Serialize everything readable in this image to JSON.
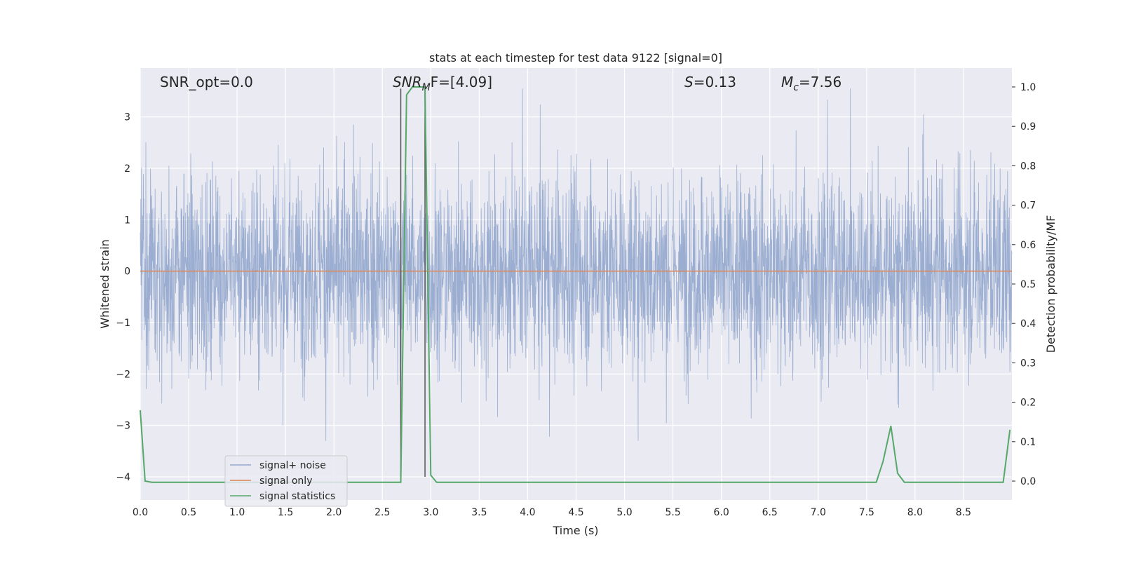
{
  "chart_data": {
    "type": "line",
    "title": "stats at each timestep for test data 9122 [signal=0]",
    "xlabel": "Time (s)",
    "ylabel": "Whitened strain",
    "y2label": "Detection probability/MF",
    "xlim": [
      0.0,
      9.0
    ],
    "ylim": [
      -4.45,
      3.95
    ],
    "y2lim": [
      -0.048,
      1.048
    ],
    "xticks": [
      0.0,
      0.5,
      1.0,
      1.5,
      2.0,
      2.5,
      3.0,
      3.5,
      4.0,
      4.5,
      5.0,
      5.5,
      6.0,
      6.5,
      7.0,
      7.5,
      8.0,
      8.5
    ],
    "xtick_labels": [
      "0.0",
      "0.5",
      "1.0",
      "1.5",
      "2.0",
      "2.5",
      "3.0",
      "3.5",
      "4.0",
      "4.5",
      "5.0",
      "5.5",
      "6.0",
      "6.5",
      "7.0",
      "7.5",
      "8.0",
      "8.5"
    ],
    "yticks": [
      -4,
      -3,
      -2,
      -1,
      0,
      1,
      2,
      3
    ],
    "ytick_labels": [
      "−4",
      "−3",
      "−2",
      "−1",
      "0",
      "1",
      "2",
      "3"
    ],
    "y2ticks": [
      0.0,
      0.1,
      0.2,
      0.3,
      0.4,
      0.5,
      0.6,
      0.7,
      0.8,
      0.9,
      1.0
    ],
    "y2tick_labels": [
      "0.0",
      "0.1",
      "0.2",
      "0.3",
      "0.4",
      "0.5",
      "0.6",
      "0.7",
      "0.8",
      "0.9",
      "1.0"
    ],
    "grid": true,
    "legend_position": "lower-left",
    "colors": {
      "noise": "#4c72b0",
      "signal": "#dd8452",
      "stats": "#55a868",
      "plot_bg": "#eaeaf2",
      "vline": "#555555"
    },
    "series": [
      {
        "name": "signal+ noise",
        "role": "noise",
        "note_envelope": "whitened noise spanning roughly ±2, spikes to about ±3.5",
        "envelope": [
          1.8,
          2.4
        ]
      },
      {
        "name": "signal only",
        "role": "signal",
        "x": [
          0.0,
          9.0
        ],
        "y": [
          0.0,
          0.0
        ]
      },
      {
        "name": "signal statistics",
        "role": "stats",
        "axis": "right",
        "x": [
          0.0,
          0.05,
          0.12,
          2.69,
          2.75,
          2.81,
          2.94,
          3.0,
          3.06,
          7.6,
          7.67,
          7.75,
          7.82,
          7.89,
          8.91,
          8.98
        ],
        "y": [
          0.18,
          0.0,
          -0.003,
          -0.003,
          0.98,
          1.0,
          1.0,
          0.015,
          -0.003,
          -0.003,
          0.05,
          0.14,
          0.02,
          -0.003,
          -0.003,
          0.13
        ]
      }
    ],
    "vlines": [
      2.69,
      2.94
    ],
    "annotations": [
      {
        "id": "snr-opt",
        "text": "SNR_opt=0.0",
        "x": 0.18
      },
      {
        "id": "snr-mf",
        "sym": "SNR",
        "sub": "M",
        "suffix": "F=[4.09]",
        "x": 2.62
      },
      {
        "id": "s",
        "sym": "S",
        "suffix": "=0.13",
        "x": 5.6
      },
      {
        "id": "mc",
        "sym": "M",
        "sub": "c",
        "suffix": "=7.56",
        "x": 6.6
      }
    ]
  }
}
